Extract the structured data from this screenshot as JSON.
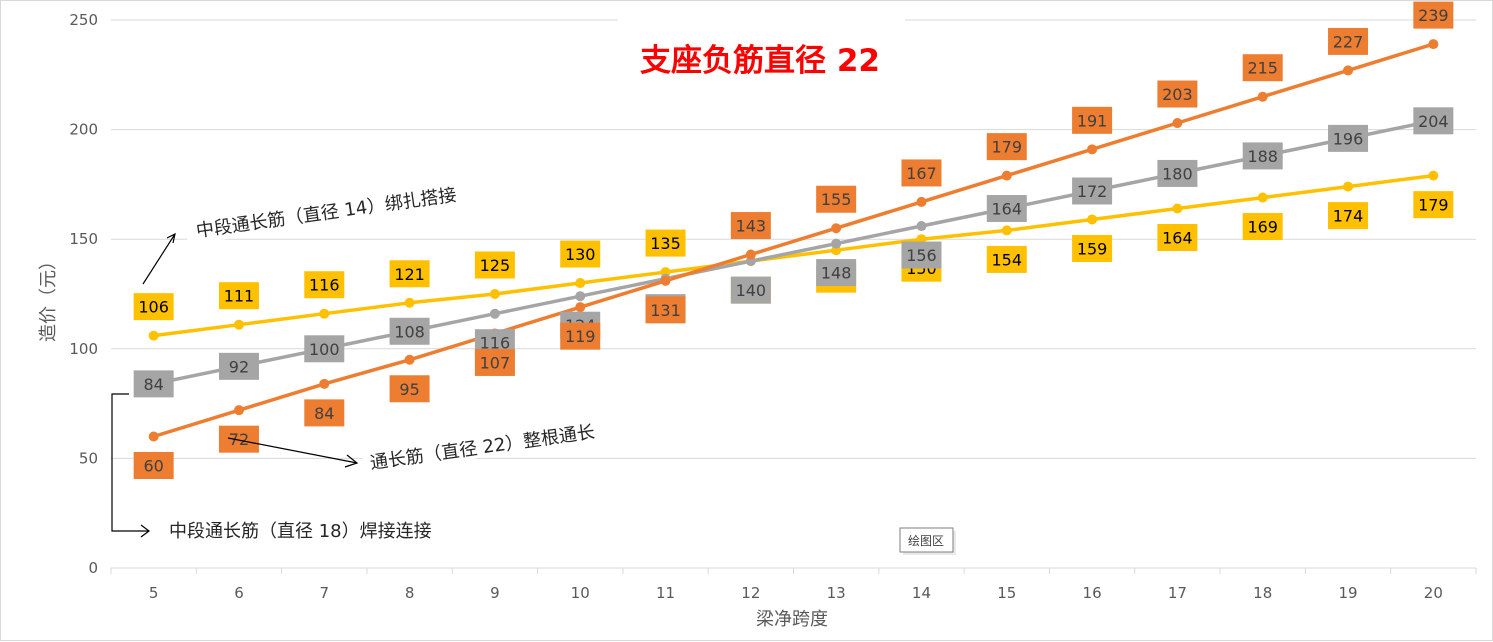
{
  "chart_data": {
    "type": "line",
    "title": "支座负筋直径 22",
    "xlabel": "梁净跨度",
    "ylabel": "造价（元）",
    "x": [
      5,
      6,
      7,
      8,
      9,
      10,
      11,
      12,
      13,
      14,
      15,
      16,
      17,
      18,
      19,
      20
    ],
    "ylim": [
      0,
      250
    ],
    "yticks": [
      0,
      50,
      100,
      150,
      200,
      250
    ],
    "grid": true,
    "series": [
      {
        "key": "lap",
        "color": "#FFC000",
        "values": [
          106,
          111,
          116,
          121,
          125,
          130,
          135,
          140,
          145,
          150,
          154,
          159,
          164,
          169,
          174,
          179
        ],
        "label_dirs": [
          "above",
          "above",
          "above",
          "above",
          "above",
          "above",
          "above",
          "below",
          "below",
          "below",
          "below",
          "below",
          "below",
          "below",
          "below",
          "below"
        ]
      },
      {
        "key": "weld",
        "color": "#A5A5A5",
        "values": [
          84,
          92,
          100,
          108,
          116,
          124,
          132,
          140,
          148,
          156,
          164,
          172,
          180,
          188,
          196,
          204
        ],
        "label_dirs": [
          "center",
          "center",
          "center",
          "center",
          "below",
          "below",
          "below",
          "below",
          "below",
          "below",
          "center",
          "center",
          "center",
          "center",
          "center",
          "center"
        ]
      },
      {
        "key": "full",
        "color": "#ED7D31",
        "values": [
          60,
          72,
          84,
          95,
          107,
          119,
          131,
          143,
          155,
          167,
          179,
          191,
          203,
          215,
          227,
          239
        ],
        "label_dirs": [
          "below",
          "below",
          "below",
          "below",
          "below",
          "below",
          "below",
          "above",
          "above",
          "above",
          "above",
          "above",
          "above",
          "above",
          "above",
          "above"
        ]
      }
    ],
    "annotations": [
      "中段通长筋（直径 14）绑扎搭接",
      "通长筋（直径 22）整根通长",
      "中段通长筋（直径 18）焊接连接"
    ],
    "plot_area_label": "绘图区"
  }
}
